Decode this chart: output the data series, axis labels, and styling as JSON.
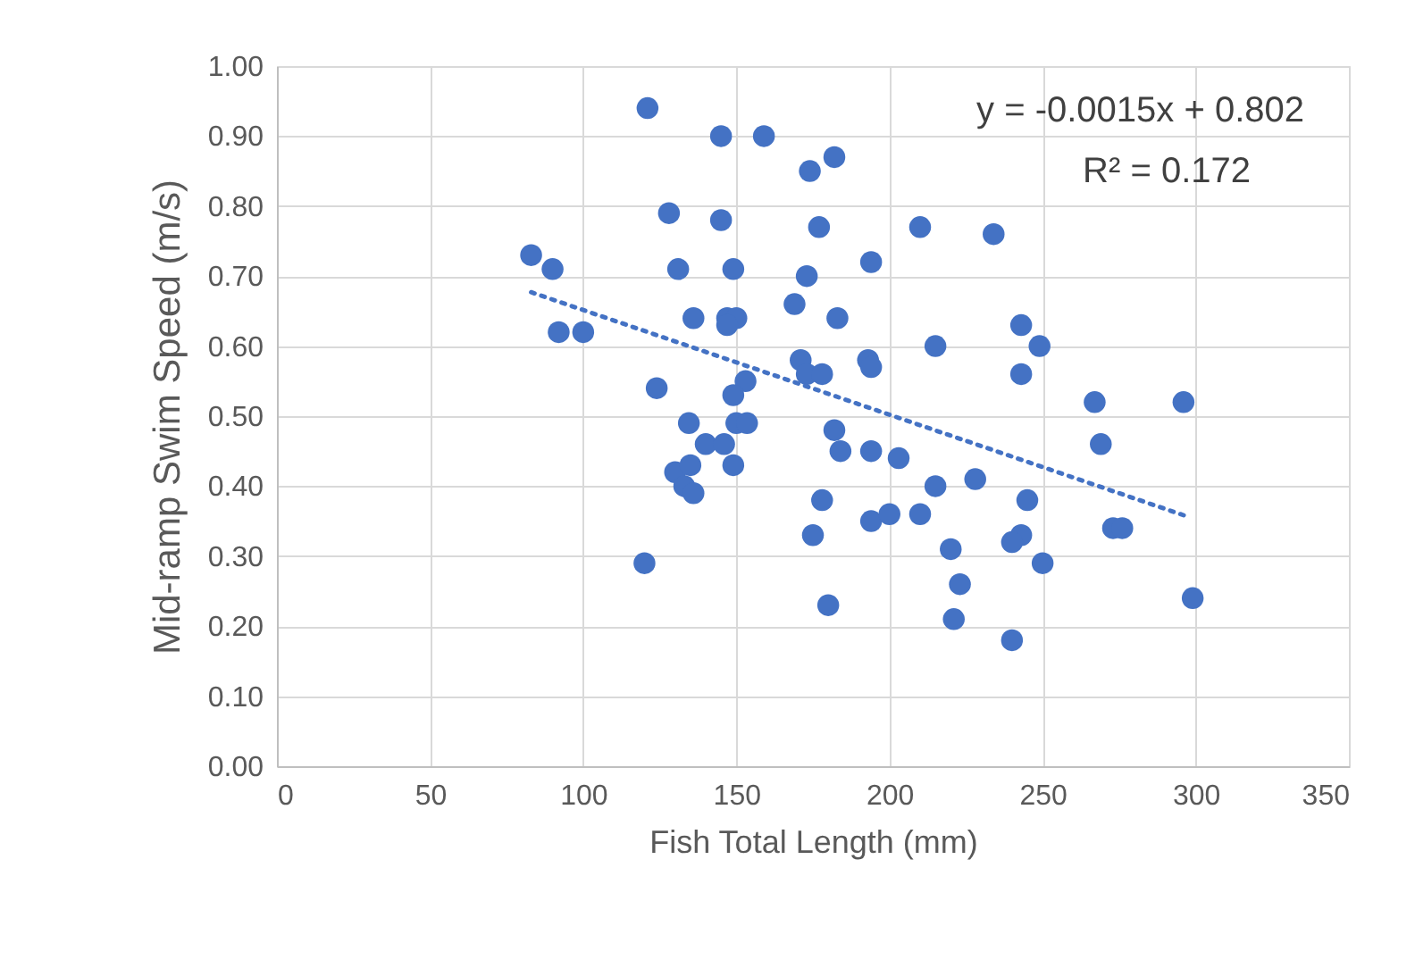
{
  "chart_data": {
    "type": "scatter",
    "xlabel": "Fish Total Length (mm)",
    "ylabel": "Mid-ramp Swim Speed (m/s)",
    "xlim": [
      0,
      350
    ],
    "xticks": [
      0,
      50,
      100,
      150,
      200,
      250,
      300,
      350
    ],
    "ylim": [
      0,
      1
    ],
    "yticks": [
      {
        "value": 0,
        "label": "0.00"
      },
      {
        "value": 0.1,
        "label": "0.10"
      },
      {
        "value": 0.2,
        "label": "0.20"
      },
      {
        "value": 0.3,
        "label": "0.30"
      },
      {
        "value": 0.4,
        "label": "0.40"
      },
      {
        "value": 0.5,
        "label": "0.50"
      },
      {
        "value": 0.6,
        "label": "0.60"
      },
      {
        "value": 0.7,
        "label": "0.70"
      },
      {
        "value": 0.8,
        "label": "0.80"
      },
      {
        "value": 0.9,
        "label": "0.90"
      },
      {
        "value": 1,
        "label": "1.00"
      }
    ],
    "grid": true,
    "series": [
      {
        "type": "scatter",
        "color": "#4472c4",
        "marker": "circle",
        "x": [
          121,
          145,
          159,
          174,
          182,
          128,
          145,
          177,
          83,
          90,
          131,
          149,
          173,
          194,
          210,
          92,
          100,
          136,
          147,
          150,
          147,
          169,
          183,
          171,
          173,
          178,
          193,
          194,
          215,
          124,
          153,
          149,
          134.5,
          150,
          153.5,
          140,
          146,
          149,
          130,
          135,
          133,
          136,
          120,
          182,
          184,
          194,
          203,
          178,
          175,
          180,
          194,
          200,
          210,
          234,
          243,
          249,
          243,
          267,
          296,
          269,
          215,
          228,
          245,
          220,
          223,
          221,
          240,
          243,
          240,
          250,
          273,
          276,
          299
        ],
        "values": [
          0.94,
          0.9,
          0.9,
          0.85,
          0.87,
          0.79,
          0.78,
          0.77,
          0.73,
          0.71,
          0.71,
          0.71,
          0.7,
          0.72,
          0.77,
          0.62,
          0.62,
          0.64,
          0.64,
          0.64,
          0.63,
          0.66,
          0.64,
          0.58,
          0.56,
          0.56,
          0.58,
          0.57,
          0.6,
          0.54,
          0.55,
          0.53,
          0.49,
          0.49,
          0.49,
          0.46,
          0.46,
          0.43,
          0.42,
          0.43,
          0.4,
          0.39,
          0.29,
          0.48,
          0.45,
          0.45,
          0.44,
          0.38,
          0.33,
          0.23,
          0.35,
          0.36,
          0.36,
          0.76,
          0.63,
          0.6,
          0.56,
          0.52,
          0.52,
          0.46,
          0.4,
          0.41,
          0.38,
          0.31,
          0.26,
          0.21,
          0.18,
          0.33,
          0.32,
          0.29,
          0.34,
          0.34,
          0.24
        ]
      },
      {
        "type": "line",
        "color": "#4472c4",
        "line_style": "dotted",
        "marker": "none",
        "x": [
          83,
          297
        ],
        "values": [
          0.677,
          0.357
        ]
      }
    ],
    "annotations": [
      "y = -0.0015x + 0.802",
      "R² = 0.172"
    ]
  }
}
